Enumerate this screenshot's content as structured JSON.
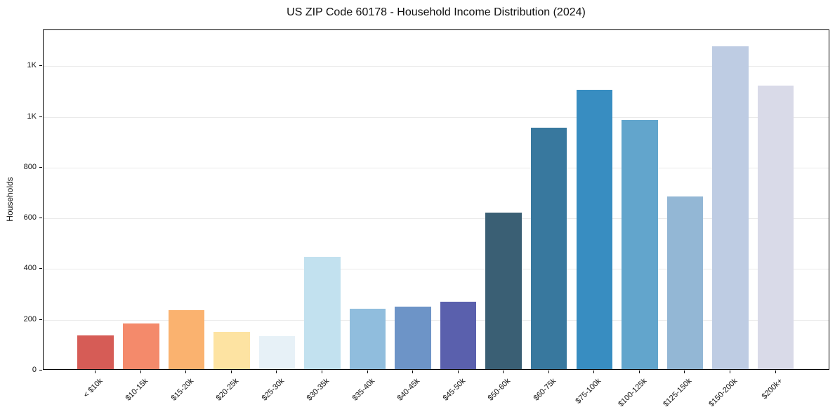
{
  "figure": {
    "background": "#ffffff",
    "frame_color": "#000000",
    "grid_color": "#eaeaea",
    "tick_color": "#000000",
    "text_color": "#111111"
  },
  "chart_data": {
    "type": "bar",
    "title": "US ZIP Code 60178 - Household Income Distribution (2024)",
    "xlabel": "",
    "ylabel": "Households",
    "categories": [
      "< $10k",
      "$10-15k",
      "$15-20k",
      "$20-25k",
      "$25-30k",
      "$30-35k",
      "$35-40k",
      "$40-45k",
      "$45-50k",
      "$50-60k",
      "$60-75k",
      "$75-100k",
      "$100-125k",
      "$125-150k",
      "$150-200k",
      "$200k+"
    ],
    "values": [
      133,
      180,
      232,
      147,
      130,
      443,
      238,
      246,
      266,
      616,
      952,
      1101,
      982,
      681,
      1273,
      1118
    ],
    "bar_colors": [
      "#d65c56",
      "#f48a6b",
      "#fab26f",
      "#fde3a2",
      "#e7f1f7",
      "#c2e1ef",
      "#90bddd",
      "#6d94c7",
      "#5a60ad",
      "#3a5f74",
      "#38789e",
      "#388dc1",
      "#62a5cc",
      "#93b7d5",
      "#becce3",
      "#d9dae8"
    ],
    "ylim": [
      0,
      1342
    ],
    "yticks": {
      "values": [
        0,
        200,
        400,
        600,
        800,
        1000,
        1200
      ],
      "labels": [
        "0",
        "200",
        "400",
        "600",
        "800",
        "1K",
        "1K"
      ]
    },
    "grid": "horizontal",
    "legend": "none",
    "x_tick_rotation_deg": 45,
    "bar_width_fraction": 0.8
  }
}
